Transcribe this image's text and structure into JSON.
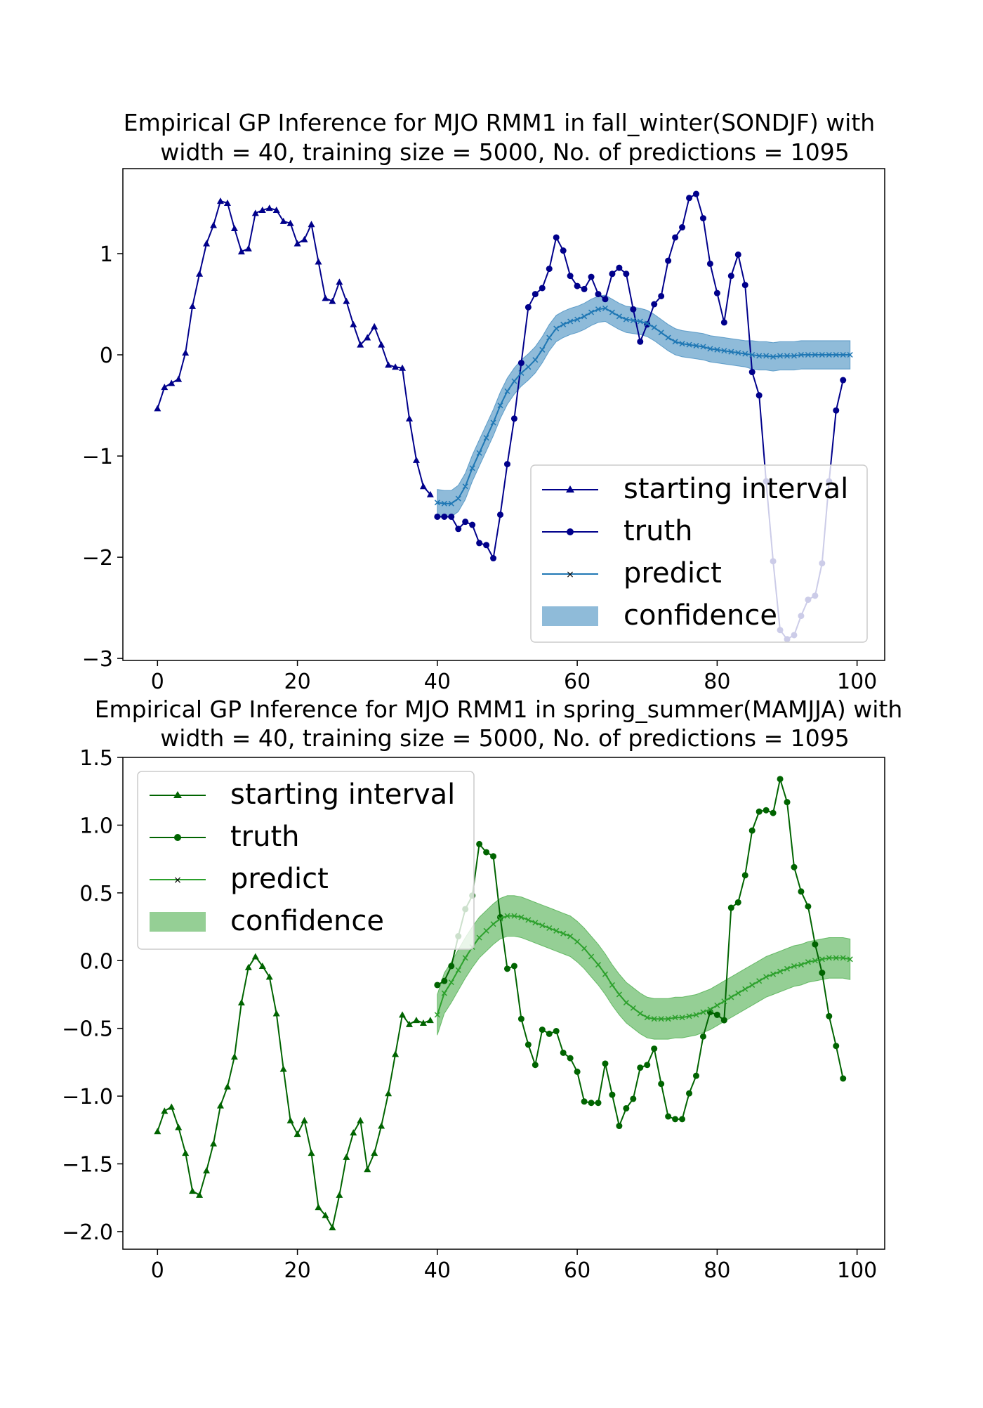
{
  "figure": {
    "background": "#ffffff"
  },
  "chart_data": [
    {
      "type": "line",
      "title_line1": "Empirical GP Inference for MJO RMM1 in fall_winter(SONDJF) with",
      "title_line2": "width = 40, training size = 5000, No. of predictions = 1095",
      "xlabel": "",
      "ylabel": "",
      "xlim": [
        -4.95,
        103.95
      ],
      "ylim": [
        -3.02,
        1.84
      ],
      "xticks": [
        0,
        20,
        40,
        60,
        80,
        100
      ],
      "yticks": [
        -3,
        -2,
        -1,
        0,
        1
      ],
      "ytick_labels": [
        "−3",
        "−2",
        "−1",
        "0",
        "1"
      ],
      "grid": false,
      "legend_position": "lower-right",
      "colors": {
        "start": "#00008b",
        "truth": "#00008b",
        "predict": "#1f77b4",
        "band": "#1f77b4"
      },
      "legend": {
        "start_label": "starting interval",
        "truth_label": "truth",
        "predict_label": "predict",
        "band_label": "confidence"
      },
      "series": [
        {
          "key": "start",
          "name": "starting interval",
          "marker": "triangle",
          "x_start": 0,
          "values": [
            -0.53,
            -0.32,
            -0.28,
            -0.24,
            0.02,
            0.48,
            0.8,
            1.1,
            1.28,
            1.52,
            1.5,
            1.25,
            1.02,
            1.05,
            1.4,
            1.43,
            1.45,
            1.43,
            1.32,
            1.3,
            1.1,
            1.14,
            1.29,
            0.92,
            0.56,
            0.53,
            0.72,
            0.53,
            0.3,
            0.1,
            0.17,
            0.28,
            0.1,
            -0.1,
            -0.12,
            -0.13,
            -0.63,
            -1.04,
            -1.3,
            -1.38
          ]
        },
        {
          "key": "truth",
          "name": "truth",
          "marker": "circle",
          "x_start": 40,
          "values": [
            -1.6,
            -1.6,
            -1.6,
            -1.72,
            -1.65,
            -1.68,
            -1.86,
            -1.88,
            -2.01,
            -1.58,
            -1.08,
            -0.63,
            -0.08,
            0.47,
            0.6,
            0.66,
            0.85,
            1.16,
            1.03,
            0.78,
            0.68,
            0.65,
            0.77,
            0.6,
            0.55,
            0.8,
            0.86,
            0.8,
            0.45,
            0.13,
            0.3,
            0.5,
            0.58,
            0.93,
            1.16,
            1.26,
            1.55,
            1.59,
            1.35,
            0.9,
            0.61,
            0.32,
            0.78,
            0.99,
            0.69,
            -0.17,
            -0.4,
            -1.25,
            -2.04,
            -2.72,
            -2.81,
            -2.77,
            -2.58,
            -2.42,
            -2.38,
            -2.06,
            -1.25,
            -0.55,
            -0.25
          ]
        },
        {
          "key": "predict",
          "name": "predict",
          "marker": "x",
          "x_start": 40,
          "values": [
            -1.46,
            -1.47,
            -1.47,
            -1.42,
            -1.3,
            -1.12,
            -0.97,
            -0.82,
            -0.67,
            -0.5,
            -0.36,
            -0.26,
            -0.18,
            -0.12,
            -0.05,
            0.05,
            0.17,
            0.26,
            0.3,
            0.33,
            0.35,
            0.38,
            0.42,
            0.45,
            0.46,
            0.42,
            0.38,
            0.35,
            0.34,
            0.33,
            0.31,
            0.27,
            0.22,
            0.17,
            0.13,
            0.11,
            0.1,
            0.09,
            0.08,
            0.06,
            0.05,
            0.04,
            0.03,
            0.02,
            0.01,
            0.0,
            -0.01,
            -0.01,
            -0.02,
            -0.01,
            -0.01,
            -0.01,
            0.0,
            0.0,
            0.0,
            0.0,
            0.0,
            0.0,
            0.0,
            0.0
          ],
          "band_halfwidth": [
            0.13,
            0.13,
            0.13,
            0.13,
            0.13,
            0.13,
            0.13,
            0.13,
            0.13,
            0.13,
            0.13,
            0.13,
            0.13,
            0.13,
            0.13,
            0.13,
            0.13,
            0.13,
            0.13,
            0.13,
            0.13,
            0.13,
            0.13,
            0.13,
            0.13,
            0.13,
            0.13,
            0.13,
            0.13,
            0.13,
            0.13,
            0.13,
            0.13,
            0.13,
            0.13,
            0.13,
            0.13,
            0.13,
            0.13,
            0.13,
            0.13,
            0.13,
            0.13,
            0.13,
            0.13,
            0.14,
            0.14,
            0.14,
            0.14,
            0.14,
            0.14,
            0.14,
            0.14,
            0.14,
            0.14,
            0.14,
            0.14,
            0.14,
            0.14,
            0.14
          ]
        }
      ]
    },
    {
      "type": "line",
      "title_line1": "Empirical GP Inference for MJO RMM1 in spring_summer(MAMJJA) with",
      "title_line2": "width = 40, training size = 5000, No. of predictions = 1095",
      "xlabel": "",
      "ylabel": "",
      "xlim": [
        -4.95,
        103.95
      ],
      "ylim": [
        -2.13,
        1.5
      ],
      "xticks": [
        0,
        20,
        40,
        60,
        80,
        100
      ],
      "yticks": [
        -2.0,
        -1.5,
        -1.0,
        -0.5,
        0.0,
        0.5,
        1.0,
        1.5
      ],
      "ytick_labels": [
        "−2.0",
        "−1.5",
        "−1.0",
        "−0.5",
        "0.0",
        "0.5",
        "1.0",
        "1.5"
      ],
      "grid": false,
      "legend_position": "upper-left",
      "colors": {
        "start": "#006400",
        "truth": "#006400",
        "predict": "#2ca02c",
        "band": "#2ca02c"
      },
      "legend": {
        "start_label": "starting interval",
        "truth_label": "truth",
        "predict_label": "predict",
        "band_label": "confidence"
      },
      "series": [
        {
          "key": "start",
          "name": "starting interval",
          "marker": "triangle",
          "x_start": 0,
          "values": [
            -1.26,
            -1.11,
            -1.08,
            -1.23,
            -1.42,
            -1.7,
            -1.73,
            -1.55,
            -1.35,
            -1.07,
            -0.93,
            -0.71,
            -0.31,
            -0.05,
            0.03,
            -0.04,
            -0.12,
            -0.39,
            -0.8,
            -1.18,
            -1.28,
            -1.18,
            -1.42,
            -1.82,
            -1.88,
            -1.97,
            -1.73,
            -1.45,
            -1.27,
            -1.18,
            -1.54,
            -1.42,
            -1.22,
            -0.98,
            -0.69,
            -0.4,
            -0.47,
            -0.44,
            -0.46,
            -0.44
          ]
        },
        {
          "key": "truth",
          "name": "truth",
          "marker": "circle",
          "x_start": 40,
          "values": [
            -0.18,
            -0.15,
            -0.04,
            0.18,
            0.38,
            0.48,
            0.86,
            0.8,
            0.77,
            0.32,
            -0.06,
            -0.04,
            -0.43,
            -0.62,
            -0.77,
            -0.51,
            -0.54,
            -0.52,
            -0.68,
            -0.72,
            -0.82,
            -1.04,
            -1.05,
            -1.05,
            -0.76,
            -0.99,
            -1.22,
            -1.09,
            -1.02,
            -0.79,
            -0.77,
            -0.65,
            -0.91,
            -1.15,
            -1.17,
            -1.17,
            -0.98,
            -0.85,
            -0.56,
            -0.38,
            -0.4,
            -0.44,
            0.39,
            0.43,
            0.63,
            0.96,
            1.1,
            1.11,
            1.09,
            1.34,
            1.17,
            0.69,
            0.51,
            0.4,
            0.12,
            -0.09,
            -0.41,
            -0.63,
            -0.87
          ]
        },
        {
          "key": "predict",
          "name": "predict",
          "marker": "x",
          "x_start": 40,
          "values": [
            -0.4,
            -0.24,
            -0.16,
            -0.07,
            0.02,
            0.1,
            0.17,
            0.22,
            0.27,
            0.31,
            0.33,
            0.33,
            0.32,
            0.3,
            0.28,
            0.26,
            0.24,
            0.22,
            0.2,
            0.18,
            0.14,
            0.09,
            0.03,
            -0.03,
            -0.1,
            -0.18,
            -0.25,
            -0.31,
            -0.35,
            -0.39,
            -0.42,
            -0.43,
            -0.43,
            -0.43,
            -0.42,
            -0.42,
            -0.41,
            -0.4,
            -0.38,
            -0.36,
            -0.33,
            -0.3,
            -0.27,
            -0.24,
            -0.21,
            -0.18,
            -0.15,
            -0.12,
            -0.1,
            -0.08,
            -0.06,
            -0.04,
            -0.03,
            -0.01,
            0.0,
            0.01,
            0.02,
            0.02,
            0.02,
            0.01
          ],
          "band_halfwidth": [
            0.15,
            0.15,
            0.15,
            0.15,
            0.15,
            0.15,
            0.15,
            0.15,
            0.15,
            0.15,
            0.15,
            0.15,
            0.15,
            0.15,
            0.15,
            0.15,
            0.15,
            0.15,
            0.15,
            0.15,
            0.15,
            0.15,
            0.15,
            0.15,
            0.15,
            0.15,
            0.15,
            0.15,
            0.15,
            0.15,
            0.15,
            0.15,
            0.15,
            0.15,
            0.15,
            0.15,
            0.15,
            0.15,
            0.15,
            0.15,
            0.15,
            0.15,
            0.15,
            0.15,
            0.15,
            0.15,
            0.15,
            0.15,
            0.15,
            0.15,
            0.15,
            0.15,
            0.15,
            0.15,
            0.15,
            0.15,
            0.15,
            0.15,
            0.15,
            0.15
          ]
        }
      ]
    }
  ]
}
